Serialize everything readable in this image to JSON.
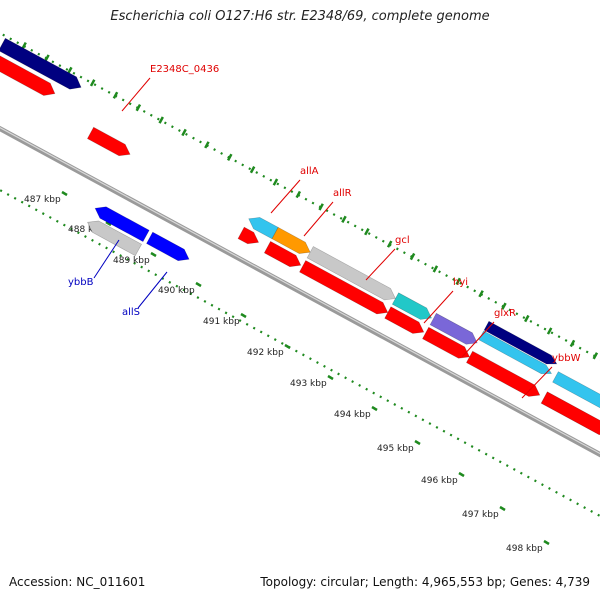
{
  "title": "Escherichia coli O127:H6 str. E2348/69, complete genome",
  "footer": {
    "accession": "Accession: NC_011601",
    "summary": "Topology: circular; Length: 4,965,553 bp; Genes: 4,739"
  },
  "ticks": [
    "487 kbp",
    "488 kbp",
    "489 kbp",
    "490 kbp",
    "491 kbp",
    "492 kbp",
    "493 kbp",
    "494 kbp",
    "495 kbp",
    "496 kbp",
    "497 kbp",
    "498 kbp"
  ],
  "colors": {
    "red": "#ff0000",
    "navy": "#000080",
    "blue": "#0000ff",
    "light_gray": "#c8c8c8",
    "sky_blue": "#33c4ee",
    "orange": "#ff9900",
    "teal": "#22c8c8",
    "purple": "#7a67d8",
    "backbone": "#9a9a9a",
    "tick_green": "#1f8a1f",
    "label_red": "#e00000",
    "label_blue": "#0000c0"
  },
  "genes": [
    {
      "label": "E2348C_0436",
      "color": "red",
      "label_color": "label_red"
    },
    {
      "label": "allA",
      "color": "sky_blue",
      "label_color": "label_red"
    },
    {
      "label": "allR",
      "color": "orange",
      "label_color": "label_red"
    },
    {
      "label": "gcl",
      "color": "light_gray",
      "label_color": "label_red"
    },
    {
      "label": "hyi",
      "color": "teal",
      "label_color": "label_red"
    },
    {
      "label": "glxR",
      "color": "purple",
      "label_color": "label_red"
    },
    {
      "label": "ybbW",
      "color": "sky_blue",
      "label_color": "label_red"
    },
    {
      "label": "ybbB",
      "color": "light_gray",
      "label_color": "label_blue"
    },
    {
      "label": "allS",
      "color": "blue",
      "label_color": "label_blue"
    }
  ]
}
